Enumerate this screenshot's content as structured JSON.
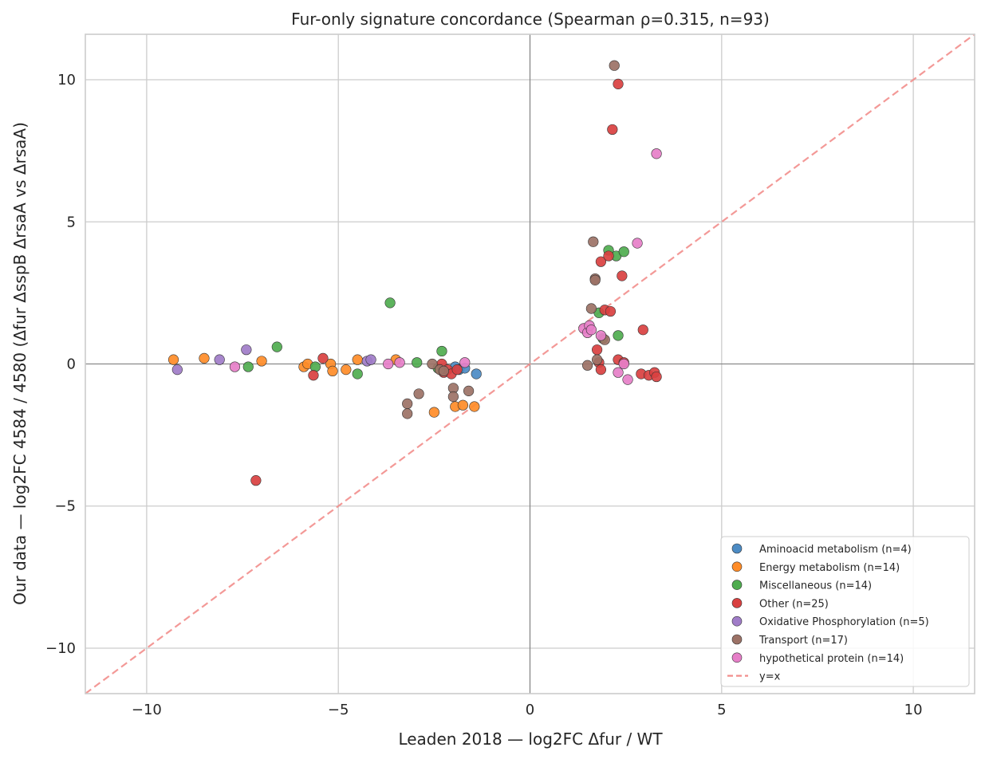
{
  "chart_data": {
    "type": "scatter",
    "title": "Fur-only signature concordance (Spearman ρ=0.315, n=93)",
    "xlabel": "Leaden 2018 — log2FC Δfur / WT",
    "ylabel": "Our data — log2FC 4584 / 4580 (Δfur ΔsspB ΔrsaA vs ΔrsaA)",
    "xlim": [
      -11.6,
      11.6
    ],
    "ylim": [
      -11.6,
      11.6
    ],
    "x_ticks": [
      -10,
      -5,
      0,
      5,
      10
    ],
    "y_ticks": [
      -10,
      -5,
      0,
      5,
      10
    ],
    "x_tick_labels": [
      "−10",
      "−5",
      "0",
      "5",
      "10"
    ],
    "y_tick_labels": [
      "−10",
      "−5",
      "0",
      "5",
      "10"
    ],
    "grid": true,
    "zero_lines": true,
    "reference_line": {
      "label": "y=x",
      "color": "#f28e8c"
    },
    "legend_position": "bottom-right",
    "series": [
      {
        "name": "Aminoacid metabolism (n=4)",
        "color": "#4c8bc4",
        "x": [
          -1.95,
          -1.85,
          -1.7,
          -1.4
        ],
        "y": [
          -0.1,
          -0.2,
          -0.15,
          -0.35
        ]
      },
      {
        "name": "Energy metabolism (n=14)",
        "color": "#ff8c28",
        "x": [
          -9.3,
          -8.5,
          -7.0,
          -5.9,
          -5.8,
          -5.2,
          -5.15,
          -4.8,
          -4.5,
          -3.5,
          -2.5,
          -1.95,
          -1.75,
          -1.45
        ],
        "y": [
          0.15,
          0.2,
          0.1,
          -0.1,
          0.0,
          0.0,
          -0.25,
          -0.2,
          0.15,
          0.15,
          -1.7,
          -1.5,
          -1.45,
          -1.5
        ]
      },
      {
        "name": "Miscellaneous (n=14)",
        "color": "#4fac4f",
        "x": [
          -7.35,
          -6.6,
          -5.6,
          -4.5,
          -3.65,
          -2.95,
          -2.4,
          -2.3,
          1.8,
          1.9,
          2.05,
          2.25,
          2.3,
          2.45
        ],
        "y": [
          -0.1,
          0.6,
          -0.1,
          -0.35,
          2.15,
          0.05,
          -0.15,
          0.45,
          1.8,
          0.9,
          4.0,
          3.8,
          1.0,
          3.95
        ]
      },
      {
        "name": "Other (n=25)",
        "color": "#d94040",
        "x": [
          -7.15,
          -5.4,
          -5.65,
          -2.3,
          -2.25,
          -2.15,
          -2.05,
          -1.9,
          1.75,
          1.8,
          1.85,
          1.85,
          1.95,
          2.05,
          2.1,
          2.15,
          2.3,
          2.3,
          2.4,
          2.45,
          2.95,
          2.9,
          3.1,
          3.25,
          3.3
        ],
        "y": [
          -4.1,
          0.2,
          -0.4,
          0.0,
          -0.3,
          -0.2,
          -0.35,
          -0.2,
          0.5,
          0.05,
          3.6,
          -0.2,
          1.9,
          3.8,
          1.85,
          8.25,
          9.85,
          0.15,
          3.1,
          0.05,
          1.2,
          -0.35,
          -0.4,
          -0.3,
          -0.45
        ]
      },
      {
        "name": "Oxidative Phosphorylation (n=5)",
        "color": "#a07cc8",
        "x": [
          -9.2,
          -8.1,
          -7.4,
          -4.25,
          -4.15
        ],
        "y": [
          -0.2,
          0.15,
          0.5,
          0.1,
          0.15
        ]
      },
      {
        "name": "Transport (n=17)",
        "color": "#9c7266",
        "x": [
          -3.2,
          -3.2,
          -2.9,
          -2.55,
          -2.35,
          -2.25,
          -2.0,
          -2.0,
          -1.6,
          1.5,
          1.6,
          1.65,
          1.7,
          1.7,
          1.75,
          1.95,
          2.2
        ],
        "y": [
          -1.4,
          -1.75,
          -1.05,
          0.0,
          -0.2,
          -0.25,
          -0.85,
          -1.15,
          -0.95,
          -0.05,
          1.95,
          4.3,
          3.0,
          2.95,
          0.15,
          0.85,
          10.5
        ]
      },
      {
        "name": "hypothetical protein (n=14)",
        "color": "#e67fc8",
        "x": [
          -7.7,
          -3.7,
          -3.4,
          -1.7,
          1.4,
          1.5,
          1.55,
          1.6,
          1.85,
          2.3,
          2.45,
          2.55,
          2.8,
          3.3
        ],
        "y": [
          -0.1,
          0.0,
          0.05,
          0.05,
          1.25,
          1.1,
          1.35,
          1.2,
          1.0,
          -0.3,
          0.0,
          -0.55,
          4.25,
          7.4
        ]
      }
    ]
  }
}
